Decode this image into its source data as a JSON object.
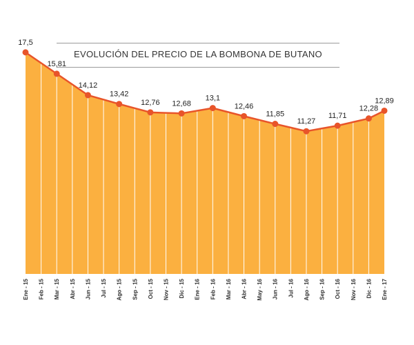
{
  "chart_data": {
    "type": "area",
    "title": "EVOLUCIÓN DEL PRECIO DE LA BOMBONA DE BUTANO",
    "xlabel": "",
    "ylabel": "",
    "ylim": [
      0,
      20
    ],
    "grid": false,
    "x": [
      "Ene - 15",
      "Feb - 15",
      "Mar - 15",
      "Abr - 15",
      "Jun - 15",
      "Jul - 15",
      "Ago - 15",
      "Sep - 15",
      "Oct - 15",
      "Nov - 15",
      "Dic - 15",
      "Ene - 16",
      "Feb - 16",
      "Mar - 16",
      "Abr - 16",
      "May - 16",
      "Jun - 16",
      "Jul - 16",
      "Ago - 16",
      "Sep - 16",
      "Oct - 16",
      "Nov - 16",
      "Dic - 16",
      "Ene - 17"
    ],
    "values": [
      17.5,
      null,
      15.81,
      null,
      14.12,
      null,
      13.42,
      null,
      12.76,
      null,
      12.68,
      null,
      13.1,
      null,
      12.46,
      null,
      11.85,
      null,
      11.27,
      null,
      11.71,
      null,
      12.28,
      12.89
    ],
    "value_labels": [
      "17,5",
      "",
      "15,81",
      "",
      "14,12",
      "",
      "13,42",
      "",
      "12,76",
      "",
      "12,68",
      "",
      "13,1",
      "",
      "12,46",
      "",
      "11,85",
      "",
      "11,27",
      "",
      "11,71",
      "",
      "12,28",
      "12,89"
    ],
    "colors": {
      "area": "#FBB040",
      "line": "#E8542A",
      "marker": "#E8542A",
      "separator": "#FFFFFF"
    }
  }
}
